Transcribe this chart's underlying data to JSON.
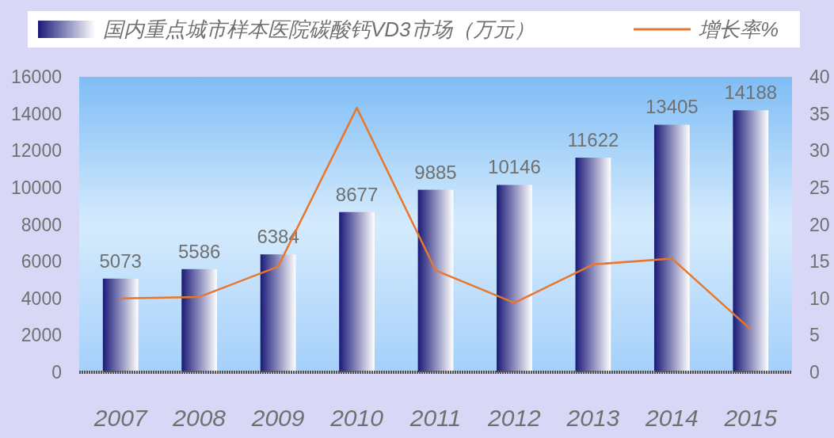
{
  "chart_data": {
    "type": "bar",
    "categories": [
      "2007",
      "2008",
      "2009",
      "2010",
      "2011",
      "2012",
      "2013",
      "2014",
      "2015"
    ],
    "series": [
      {
        "name": "国内重点城市样本医院碳酸钙VD3市场（万元）",
        "color": "#1a1a78",
        "values": [
          5073,
          5586,
          6384,
          8677,
          9885,
          10146,
          11622,
          13405,
          14188
        ],
        "value_labels": [
          "5073",
          "5586",
          "6384",
          "8677",
          "9885",
          "10146",
          "11622",
          "13405",
          "14188"
        ]
      },
      {
        "name": "增长率%",
        "type": "line",
        "axis": "y2",
        "color": "#e8762d",
        "values": [
          10.0,
          10.2,
          14.3,
          35.8,
          13.8,
          9.4,
          14.6,
          15.4,
          5.8
        ]
      }
    ],
    "ylim": [
      0,
      16000
    ],
    "yticks": [
      0,
      2000,
      4000,
      6000,
      8000,
      10000,
      12000,
      14000,
      16000
    ],
    "y2lim": [
      0,
      40
    ],
    "y2ticks": [
      0,
      5,
      10,
      15,
      20,
      25,
      30,
      35,
      40
    ],
    "legend": "top",
    "grid": false,
    "marker": "none",
    "line_style": "solid"
  }
}
